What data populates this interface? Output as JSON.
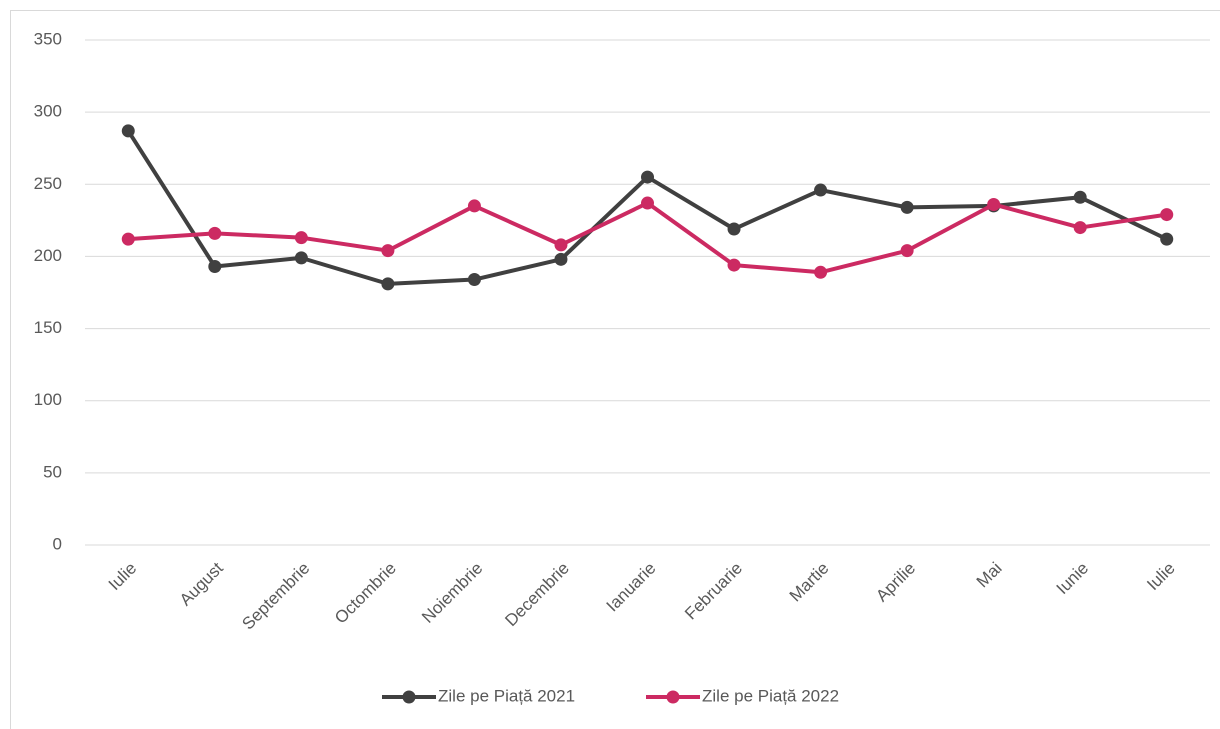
{
  "chart_data": {
    "type": "line",
    "categories": [
      "Iulie",
      "August",
      "Septembrie",
      "Octombrie",
      "Noiembrie",
      "Decembrie",
      "Ianuarie",
      "Februarie",
      "Martie",
      "Aprilie",
      "Mai",
      "Iunie",
      "Iulie"
    ],
    "series": [
      {
        "name": "Zile pe Piață 2021",
        "color": "#404040",
        "values": [
          287,
          193,
          199,
          181,
          184,
          198,
          255,
          219,
          246,
          234,
          235,
          241,
          212
        ]
      },
      {
        "name": "Zile pe Piață 2022",
        "color": "#cc2a62",
        "values": [
          212,
          216,
          213,
          204,
          235,
          208,
          237,
          194,
          189,
          204,
          236,
          220,
          229
        ]
      }
    ],
    "ylim": [
      0,
      350
    ],
    "yticks": [
      0,
      50,
      100,
      150,
      200,
      250,
      300,
      350
    ],
    "grid": true,
    "legend": "bottom"
  }
}
